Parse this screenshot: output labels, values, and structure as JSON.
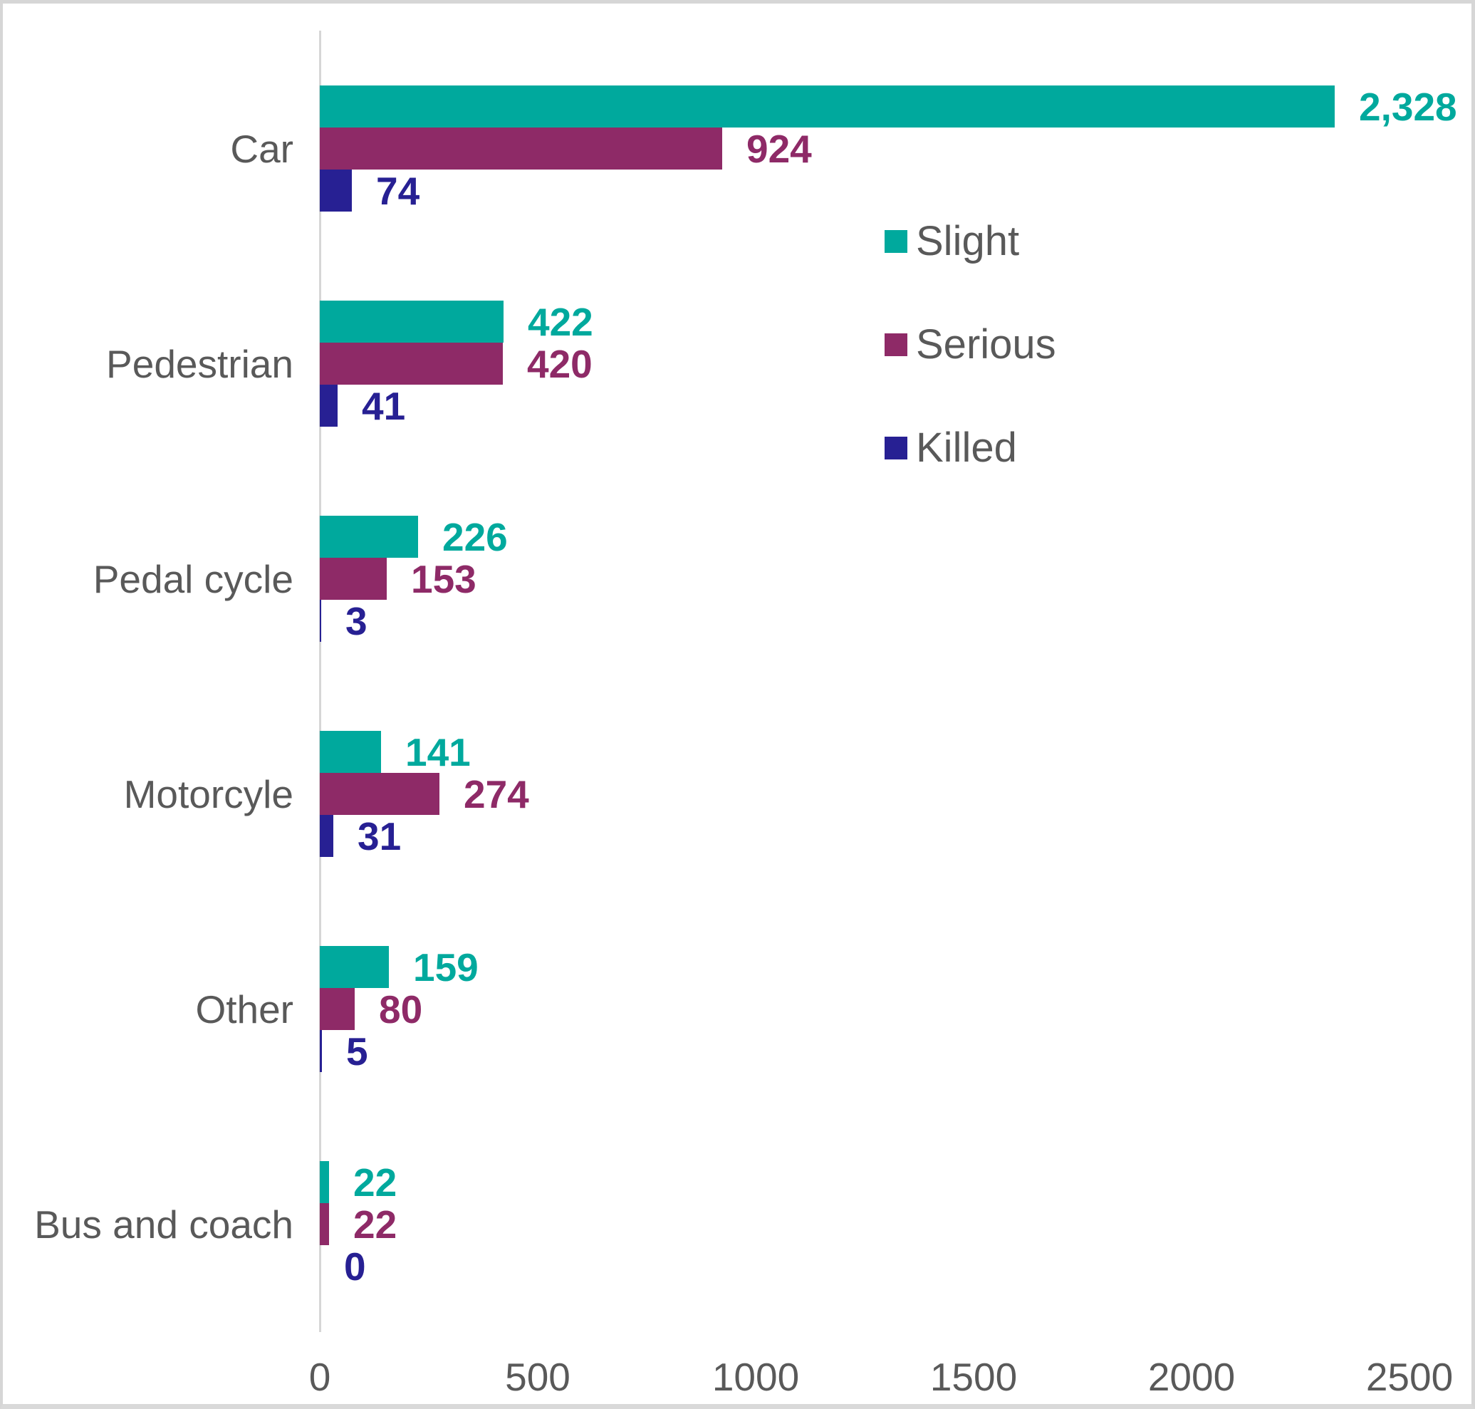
{
  "chart_data": {
    "type": "bar",
    "orientation": "horizontal",
    "title": "",
    "xlabel": "",
    "ylabel": "",
    "categories": [
      "Car",
      "Pedestrian",
      "Pedal cycle",
      "Motorcyle",
      "Other",
      "Bus and coach"
    ],
    "series": [
      {
        "name": "Slight",
        "color": "#00a99d",
        "values": [
          2328,
          422,
          226,
          141,
          159,
          22
        ],
        "labels": [
          "2,328",
          "422",
          "226",
          "141",
          "159",
          "22"
        ]
      },
      {
        "name": "Serious",
        "color": "#8e2a67",
        "values": [
          924,
          420,
          153,
          274,
          80,
          22
        ],
        "labels": [
          "924",
          "420",
          "153",
          "274",
          "80",
          "22"
        ]
      },
      {
        "name": "Killed",
        "color": "#272093",
        "values": [
          74,
          41,
          3,
          31,
          5,
          0
        ],
        "labels": [
          "74",
          "41",
          "3",
          "31",
          "5",
          "0"
        ]
      }
    ],
    "xlim": [
      0,
      2500
    ],
    "x_ticks": [
      0,
      500,
      1000,
      1500,
      2000,
      2500
    ],
    "x_tick_labels": [
      "0",
      "500",
      "1000",
      "1500",
      "2000",
      "2500"
    ],
    "grid": "off",
    "legend_position": "inside-upper-right",
    "data_labels": "on"
  },
  "colors": {
    "label_text": "#595959",
    "axis_line": "#d6d6d6",
    "background": "#ffffff",
    "border": "#d6d6d6"
  }
}
